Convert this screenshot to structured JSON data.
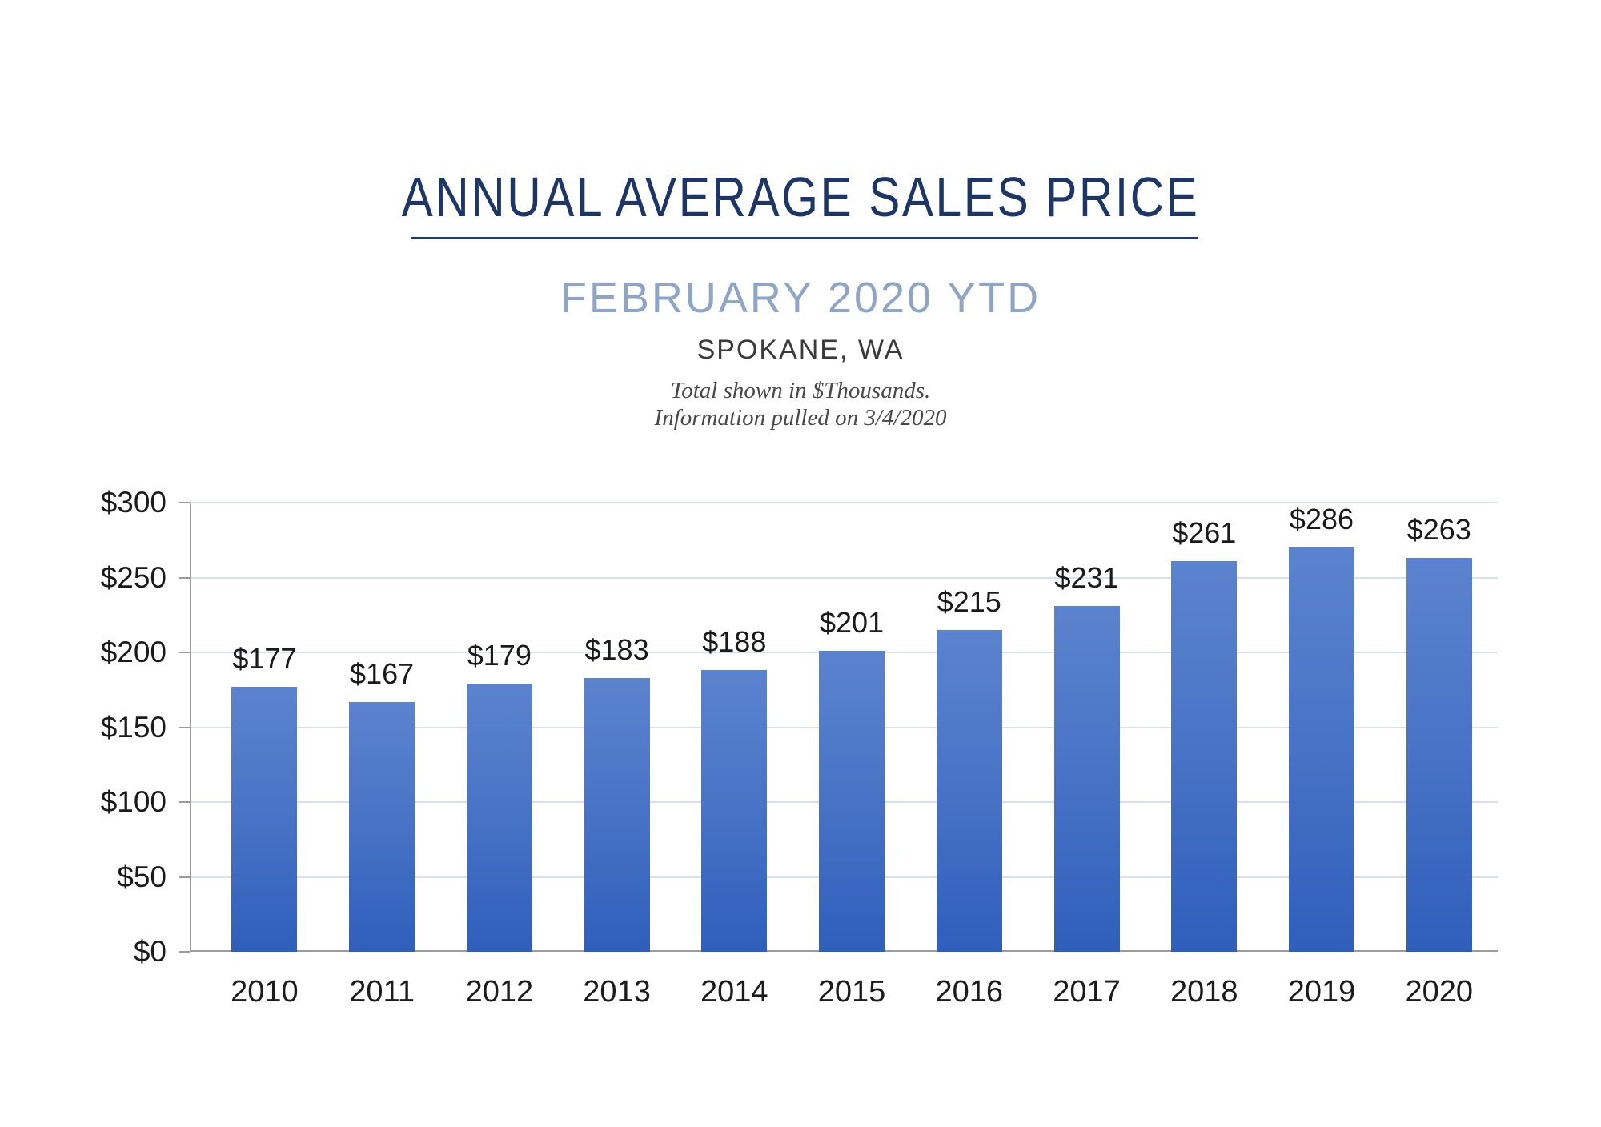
{
  "header": {
    "title": "ANNUAL AVERAGE SALES PRICE",
    "subtitle": "FEBRUARY 2020 YTD",
    "location": "SPOKANE, WA",
    "note_line1": "Total shown in $Thousands.",
    "note_line2": "Information pulled on 3/4/2020"
  },
  "chart_data": {
    "type": "bar",
    "title": "ANNUAL AVERAGE SALES PRICE",
    "subtitle": "FEBRUARY 2020 YTD",
    "region": "SPOKANE, WA",
    "units": "$Thousands",
    "categories": [
      "2010",
      "2011",
      "2012",
      "2013",
      "2014",
      "2015",
      "2016",
      "2017",
      "2018",
      "2019",
      "2020"
    ],
    "values": [
      177,
      167,
      179,
      183,
      188,
      201,
      215,
      231,
      261,
      286,
      263
    ],
    "bar_labels": [
      "$177",
      "$167",
      "$179",
      "$183",
      "$188",
      "$201",
      "$215",
      "$231",
      "$261",
      "$286",
      "$263"
    ],
    "xlabel": "",
    "ylabel": "",
    "ylim": [
      0,
      300
    ],
    "ytick_step": 50,
    "ytick_values": [
      0,
      50,
      100,
      150,
      200,
      250,
      300
    ],
    "ytick_labels": [
      "$0",
      "$50",
      "$100",
      "$150",
      "$200",
      "$250",
      "$300"
    ],
    "grid": "horizontal",
    "legend": false
  },
  "colors": {
    "title": "#1d3666",
    "underline": "#1f3a6d",
    "subtitle": "#8fa5c5",
    "bar_gradient_top": "#5b83ce",
    "bar_gradient_bottom": "#2f5fbc",
    "gridline": "#dadff0",
    "axis": "#9c9c9c",
    "label_text": "#1a1a1a"
  }
}
